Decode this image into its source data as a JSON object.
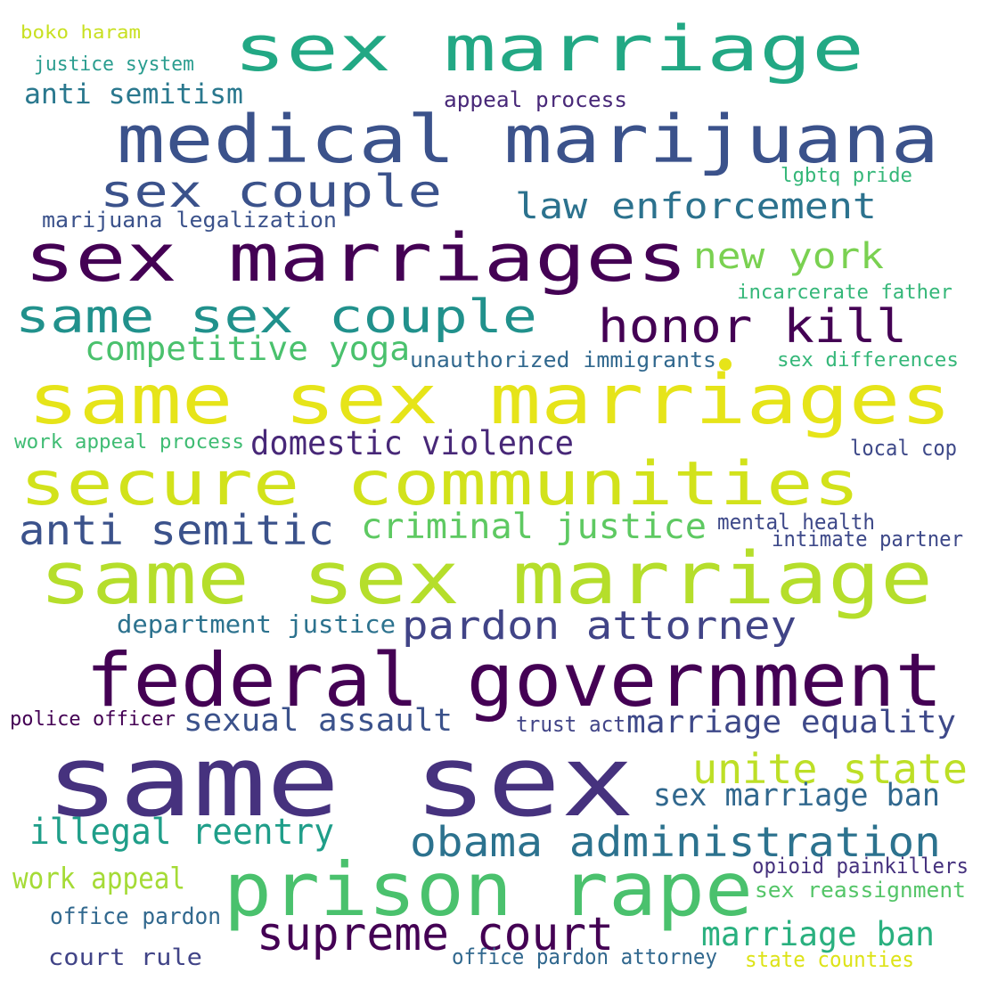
{
  "words": [
    {
      "id": "boko-haram",
      "text": "boko haram",
      "color": "#c8e020"
    },
    {
      "id": "sex-marriage",
      "text": "sex marriage",
      "color": "#22a884"
    },
    {
      "id": "justice-system",
      "text": "justice system",
      "color": "#2a9d8f"
    },
    {
      "id": "anti-semitism",
      "text": "anti semitism",
      "color": "#2a788e"
    },
    {
      "id": "appeal-process",
      "text": "appeal process",
      "color": "#482878"
    },
    {
      "id": "medical-marijuana",
      "text": "medical marijuana",
      "color": "#3b528b"
    },
    {
      "id": "sex-couple",
      "text": "sex couple",
      "color": "#3b528b"
    },
    {
      "id": "lgbtq-pride",
      "text": "lgbtq pride",
      "color": "#35b779"
    },
    {
      "id": "law-enforcement",
      "text": "law enforcement",
      "color": "#2c728e"
    },
    {
      "id": "marijuana-legalization",
      "text": "marijuana legalization",
      "color": "#3b528b"
    },
    {
      "id": "sex-marriages",
      "text": "sex marriages",
      "color": "#440154"
    },
    {
      "id": "new-york",
      "text": "new york",
      "color": "#7ad151"
    },
    {
      "id": "incarcerate-father",
      "text": "incarcerate father",
      "color": "#35b779"
    },
    {
      "id": "same-sex-couple",
      "text": "same sex couple",
      "color": "#21918c"
    },
    {
      "id": "honor-kill",
      "text": "honor kill",
      "color": "#440154"
    },
    {
      "id": "competitive-yoga",
      "text": "competitive yoga",
      "color": "#4ac16d"
    },
    {
      "id": "unauthorized-immigrants",
      "text": "unauthorized immigrants",
      "color": "#31688e"
    },
    {
      "id": "sex-differences",
      "text": "sex differences",
      "color": "#35b779"
    },
    {
      "id": "same-sex-marriages",
      "text": "same sex marriages",
      "color": "#e6e419"
    },
    {
      "id": "work-appeal-process",
      "text": "work appeal process",
      "color": "#3fbc73"
    },
    {
      "id": "domestic-violence",
      "text": "domestic violence",
      "color": "#482878"
    },
    {
      "id": "local-cop",
      "text": "local cop",
      "color": "#3e4989"
    },
    {
      "id": "secure-communities",
      "text": "secure communities",
      "color": "#d2e21b"
    },
    {
      "id": "anti-semitic",
      "text": "anti semitic",
      "color": "#3b528b"
    },
    {
      "id": "criminal-justice",
      "text": "criminal justice",
      "color": "#5ec962"
    },
    {
      "id": "mental-health",
      "text": "mental health",
      "color": "#3e4989"
    },
    {
      "id": "intimate-partner",
      "text": "intimate partner",
      "color": "#3e4989"
    },
    {
      "id": "same-sex-marriage",
      "text": "same sex marriage",
      "color": "#b5de2b"
    },
    {
      "id": "department-justice",
      "text": "department justice",
      "color": "#2c728e"
    },
    {
      "id": "pardon-attorney",
      "text": "pardon attorney",
      "color": "#414487"
    },
    {
      "id": "federal-government",
      "text": "federal government",
      "color": "#440154"
    },
    {
      "id": "police-officer",
      "text": "police officer",
      "color": "#440154"
    },
    {
      "id": "sexual-assault",
      "text": "sexual assault",
      "color": "#3b528b"
    },
    {
      "id": "trust-act",
      "text": "trust act",
      "color": "#414487"
    },
    {
      "id": "marriage-equality",
      "text": "marriage equality",
      "color": "#3e4989"
    },
    {
      "id": "same-sex",
      "text": "same sex",
      "color": "#46327e"
    },
    {
      "id": "unite-state",
      "text": "unite state",
      "color": "#bddf26"
    },
    {
      "id": "sex-marriage-ban",
      "text": "sex marriage ban",
      "color": "#31688e"
    },
    {
      "id": "illegal-reentry",
      "text": "illegal reentry",
      "color": "#1f9e89"
    },
    {
      "id": "obama-administration",
      "text": "obama administration",
      "color": "#2c728e"
    },
    {
      "id": "prison-rape",
      "text": "prison rape",
      "color": "#4ac16d"
    },
    {
      "id": "opioid-painkillers",
      "text": "opioid painkillers",
      "color": "#46327e"
    },
    {
      "id": "work-appeal",
      "text": "work appeal",
      "color": "#a5db36"
    },
    {
      "id": "sex-reassignment",
      "text": "sex reassignment",
      "color": "#54c568"
    },
    {
      "id": "office-pardon",
      "text": "office pardon",
      "color": "#31688e"
    },
    {
      "id": "supreme-court",
      "text": "supreme court",
      "color": "#440154"
    },
    {
      "id": "marriage-ban",
      "text": "marriage ban",
      "color": "#2ab07f"
    },
    {
      "id": "court-rule",
      "text": "court rule",
      "color": "#414487"
    },
    {
      "id": "office-pardon-attorney",
      "text": "office pardon attorney",
      "color": "#31688e"
    },
    {
      "id": "state-counties",
      "text": "state counties",
      "color": "#dde318"
    }
  ],
  "dot": {
    "color": "#e6e419"
  }
}
